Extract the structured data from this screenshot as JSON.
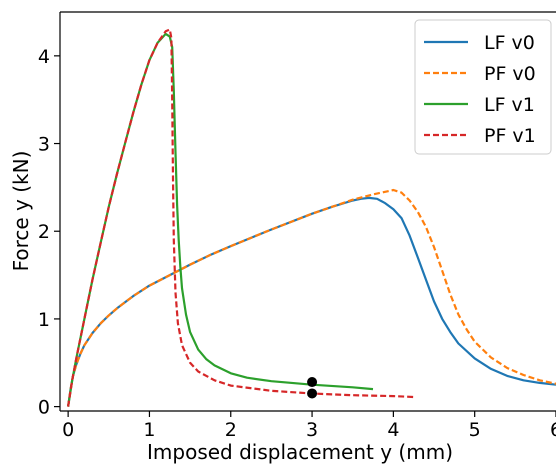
{
  "chart_data": {
    "type": "line",
    "title": "",
    "xlabel": "Imposed displacement y (mm)",
    "ylabel": "Force y (kN)",
    "xlim": [
      -0.1,
      6.0
    ],
    "ylim": [
      -0.05,
      4.5
    ],
    "xticks": [
      0,
      1,
      2,
      3,
      4,
      5,
      6
    ],
    "yticks": [
      0,
      1,
      2,
      3,
      4
    ],
    "xtick_labels": [
      "0",
      "1",
      "2",
      "3",
      "4",
      "5",
      "6"
    ],
    "ytick_labels": [
      "0",
      "1",
      "2",
      "3",
      "4"
    ],
    "grid": false,
    "legend": {
      "position": "top-right"
    },
    "series": [
      {
        "name": "LF v0",
        "color": "#1f77b4",
        "dash": "solid",
        "x": [
          0,
          0.03,
          0.06,
          0.1,
          0.15,
          0.2,
          0.3,
          0.4,
          0.5,
          0.6,
          0.8,
          1.0,
          1.25,
          1.5,
          1.75,
          2.0,
          2.5,
          3.0,
          3.25,
          3.5,
          3.6,
          3.7,
          3.8,
          3.9,
          4.0,
          4.1,
          4.2,
          4.3,
          4.4,
          4.5,
          4.6,
          4.7,
          4.8,
          5.0,
          5.2,
          5.4,
          5.6,
          5.8,
          6.0
        ],
        "y": [
          0,
          0.2,
          0.35,
          0.48,
          0.6,
          0.7,
          0.84,
          0.95,
          1.04,
          1.12,
          1.26,
          1.38,
          1.5,
          1.62,
          1.73,
          1.83,
          2.02,
          2.2,
          2.28,
          2.35,
          2.37,
          2.38,
          2.37,
          2.32,
          2.25,
          2.15,
          1.95,
          1.7,
          1.45,
          1.2,
          1.0,
          0.85,
          0.72,
          0.55,
          0.43,
          0.35,
          0.3,
          0.27,
          0.25
        ]
      },
      {
        "name": "PF v0",
        "color": "#ff7f0e",
        "dash": "dashed",
        "x": [
          0,
          0.03,
          0.06,
          0.1,
          0.15,
          0.2,
          0.3,
          0.4,
          0.5,
          0.6,
          0.8,
          1.0,
          1.25,
          1.5,
          1.75,
          2.0,
          2.5,
          3.0,
          3.25,
          3.5,
          3.75,
          3.9,
          4.0,
          4.1,
          4.2,
          4.3,
          4.4,
          4.5,
          4.6,
          4.7,
          4.8,
          4.9,
          5.0,
          5.2,
          5.4,
          5.6,
          5.8,
          6.0
        ],
        "y": [
          0,
          0.2,
          0.35,
          0.48,
          0.6,
          0.7,
          0.84,
          0.95,
          1.04,
          1.12,
          1.26,
          1.38,
          1.5,
          1.62,
          1.73,
          1.83,
          2.02,
          2.2,
          2.28,
          2.36,
          2.42,
          2.45,
          2.47,
          2.44,
          2.35,
          2.22,
          2.05,
          1.82,
          1.55,
          1.28,
          1.05,
          0.88,
          0.74,
          0.56,
          0.44,
          0.36,
          0.3,
          0.26
        ]
      },
      {
        "name": "LF v1",
        "color": "#2ca02c",
        "dash": "solid",
        "x": [
          0,
          0.05,
          0.1,
          0.2,
          0.3,
          0.4,
          0.5,
          0.6,
          0.7,
          0.8,
          0.9,
          1.0,
          1.1,
          1.2,
          1.25,
          1.28,
          1.3,
          1.32,
          1.34,
          1.36,
          1.38,
          1.4,
          1.45,
          1.5,
          1.6,
          1.7,
          1.8,
          2.0,
          2.2,
          2.5,
          3.0,
          3.5,
          3.75
        ],
        "y": [
          0,
          0.3,
          0.55,
          1.0,
          1.45,
          1.87,
          2.28,
          2.65,
          3.0,
          3.35,
          3.67,
          3.95,
          4.15,
          4.25,
          4.22,
          4.1,
          3.6,
          2.9,
          2.3,
          1.9,
          1.6,
          1.35,
          1.05,
          0.85,
          0.65,
          0.54,
          0.47,
          0.38,
          0.33,
          0.29,
          0.25,
          0.22,
          0.2
        ]
      },
      {
        "name": "PF v1",
        "color": "#d62728",
        "dash": "dashed",
        "x": [
          0,
          0.05,
          0.1,
          0.2,
          0.3,
          0.4,
          0.5,
          0.6,
          0.7,
          0.8,
          0.9,
          1.0,
          1.1,
          1.2,
          1.25,
          1.27,
          1.28,
          1.29,
          1.3,
          1.32,
          1.35,
          1.4,
          1.5,
          1.6,
          1.8,
          2.0,
          2.5,
          3.0,
          3.5,
          4.0,
          4.25
        ],
        "y": [
          0,
          0.3,
          0.55,
          1.0,
          1.45,
          1.87,
          2.28,
          2.65,
          3.0,
          3.35,
          3.67,
          3.95,
          4.15,
          4.28,
          4.3,
          4.2,
          3.5,
          2.6,
          1.9,
          1.3,
          0.95,
          0.7,
          0.5,
          0.4,
          0.3,
          0.24,
          0.18,
          0.15,
          0.13,
          0.12,
          0.11
        ]
      }
    ],
    "markers": [
      {
        "x": 3.0,
        "y": 0.28,
        "color": "#000000"
      },
      {
        "x": 3.0,
        "y": 0.15,
        "color": "#000000"
      }
    ]
  }
}
